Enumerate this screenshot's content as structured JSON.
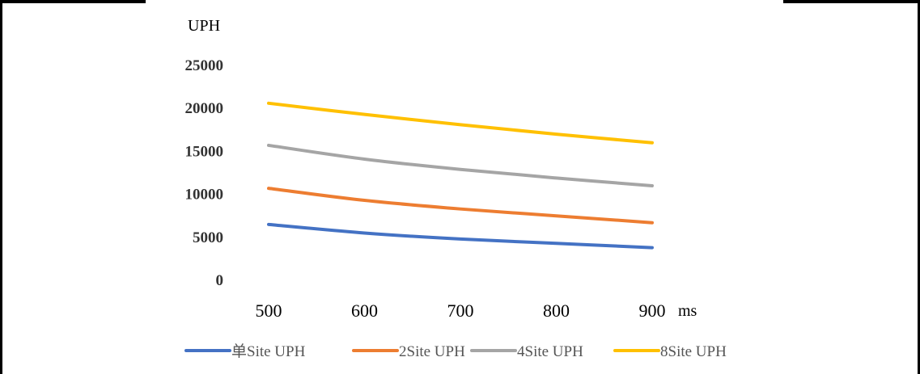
{
  "chart_data": {
    "type": "line",
    "x": [
      500,
      600,
      700,
      800,
      900
    ],
    "x_tick_labels": [
      "500",
      "600",
      "700",
      "800",
      "900"
    ],
    "y_tick_labels": [
      "0",
      "5000",
      "10000",
      "15000",
      "20000",
      "25000"
    ],
    "ylim": [
      0,
      25000
    ],
    "xlabel": "ms",
    "ylabel": "UPH",
    "grid": false,
    "legend_position": "bottom",
    "series": [
      {
        "name": "单Site UPH",
        "color": "#4472C4",
        "values": [
          6500,
          5500,
          4800,
          4300,
          3800
        ]
      },
      {
        "name": "2Site UPH",
        "color": "#ED7D31",
        "values": [
          10700,
          9300,
          8300,
          7500,
          6700
        ]
      },
      {
        "name": "4Site UPH",
        "color": "#A5A5A5",
        "values": [
          15700,
          14100,
          12900,
          11900,
          11000
        ]
      },
      {
        "name": "8Site UPH",
        "color": "#FFC000",
        "values": [
          20600,
          19300,
          18100,
          17000,
          16000
        ]
      }
    ]
  }
}
